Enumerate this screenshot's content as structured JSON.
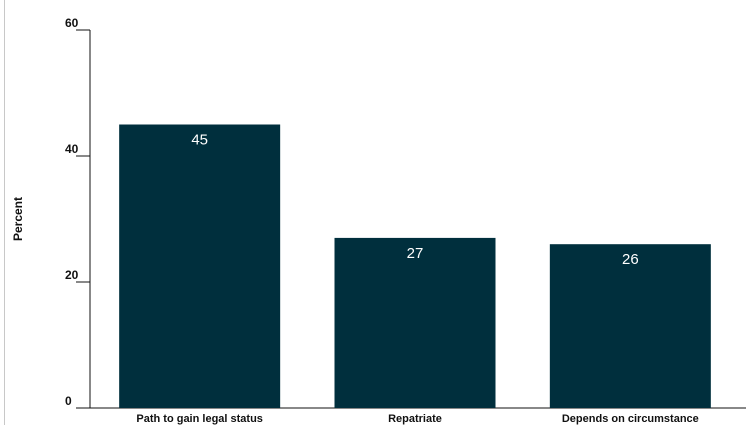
{
  "chart_data": {
    "type": "bar",
    "title": "",
    "xlabel": "",
    "ylabel": "Percent",
    "ylim": [
      0,
      60
    ],
    "yticks": [
      0,
      20,
      40,
      60
    ],
    "grid": false,
    "categories": [
      "Path to gain legal status",
      "Repatriate",
      "Depends on circumstance"
    ],
    "values": [
      45,
      27,
      26
    ],
    "data_labels": [
      "45",
      "27",
      "26"
    ],
    "bar_color": "#002f3d",
    "label_color": "#ffffff"
  }
}
